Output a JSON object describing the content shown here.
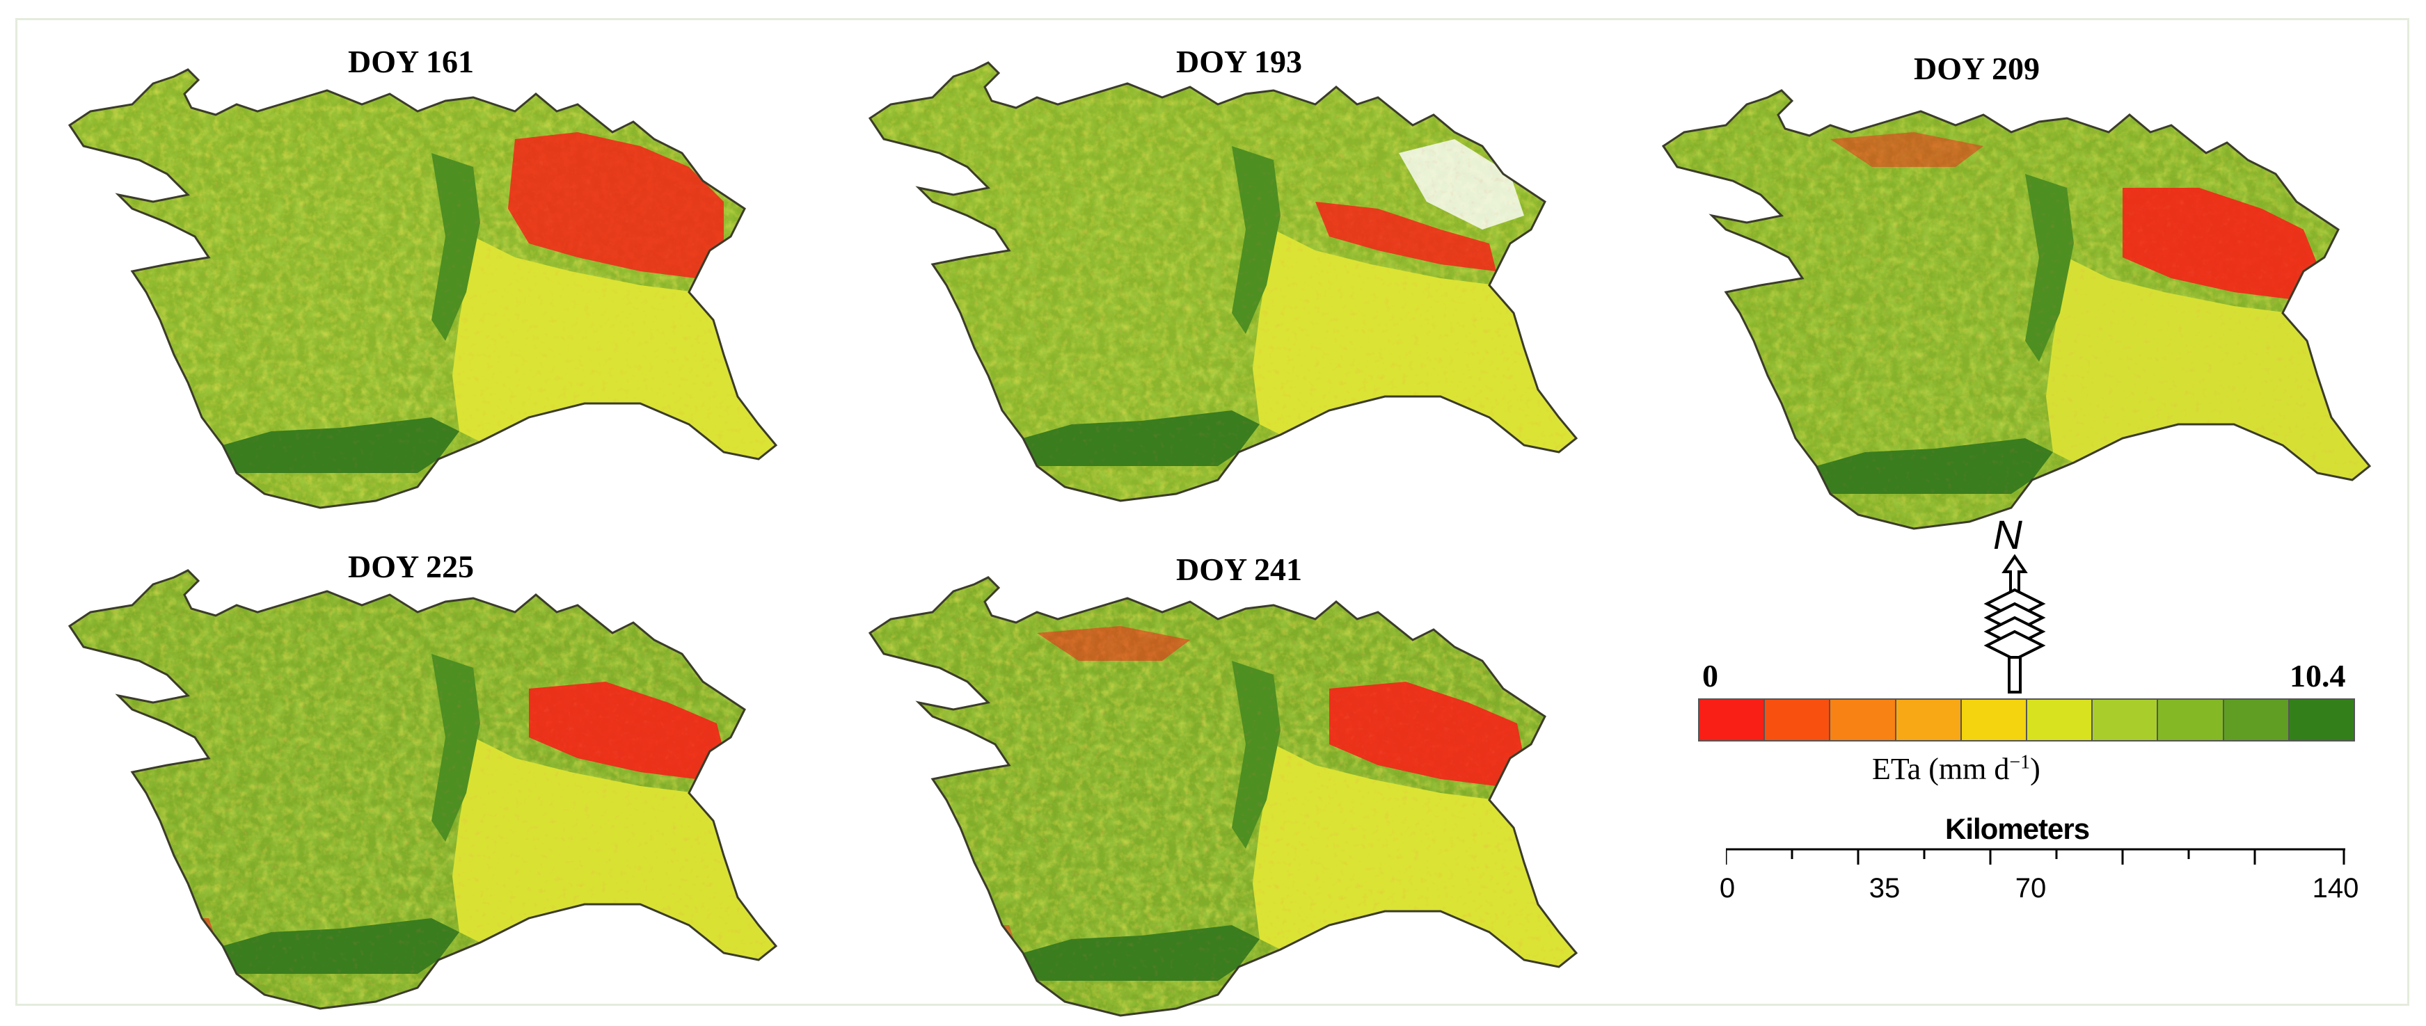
{
  "map": {
    "panels": [
      {
        "title": "DOY 161"
      },
      {
        "title": "DOY 193"
      },
      {
        "title": "DOY 209"
      },
      {
        "title": "DOY 225"
      },
      {
        "title": "DOY 241"
      }
    ],
    "legend": {
      "min_label": "0",
      "max_label": "10.4",
      "title_main": "ETa (mm d",
      "title_exp": "−1",
      "title_close": ")",
      "colors": [
        "#f91f16",
        "#f8500f",
        "#f88213",
        "#f8a814",
        "#f4d30f",
        "#d9e21f",
        "#a9ce2c",
        "#84b825",
        "#5f9e23",
        "#33801a"
      ]
    },
    "scale_bar": {
      "title": "Kilometers",
      "labels": [
        "0",
        "35",
        "70",
        "140"
      ]
    },
    "north_arrow": {
      "letter": "N"
    }
  }
}
